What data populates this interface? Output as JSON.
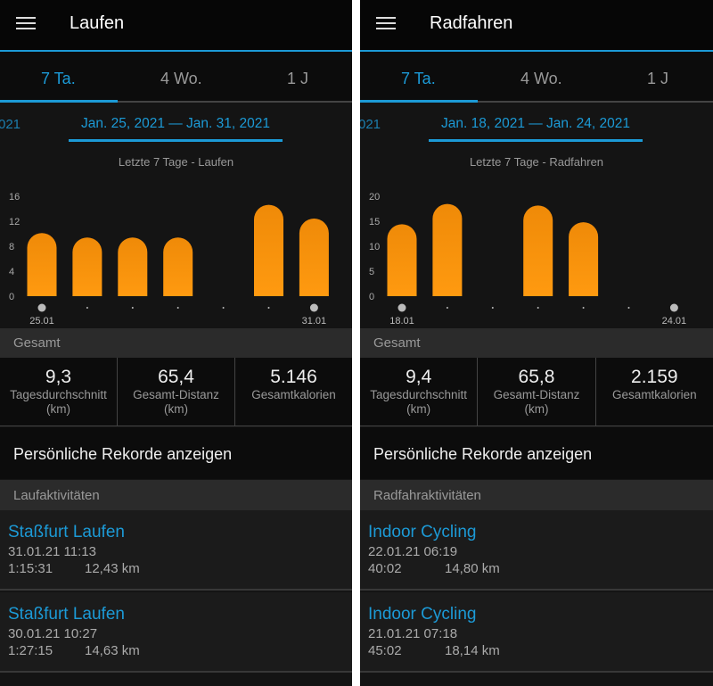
{
  "colors": {
    "accent": "#1c9ad6",
    "bar": "#ff9a10",
    "background": "#141414"
  },
  "panels": [
    {
      "header": {
        "menu_icon": "hamburger-menu-icon",
        "title": "Laufen"
      },
      "tabs": [
        "7 Ta.",
        "4 Wo.",
        "1 J"
      ],
      "active_tab": "7 Ta.",
      "prev_range_fragment": "021",
      "date_range": "Jan. 25, 2021 — Jan. 31, 2021",
      "chart_data": {
        "type": "bar",
        "title": "Letzte 7 Tage - Laufen",
        "ylim": [
          0,
          16
        ],
        "yticks": [
          0,
          4,
          8,
          12,
          16
        ],
        "categories": [
          "25.01",
          "26.01",
          "27.01",
          "28.01",
          "29.01",
          "30.01",
          "31.01"
        ],
        "tick_labels": [
          "25.01",
          "",
          "",
          "",
          "",
          "",
          "31.01"
        ],
        "values": [
          10.1,
          9.4,
          9.4,
          9.4,
          0,
          14.63,
          12.43
        ]
      },
      "summary": {
        "label": "Gesamt",
        "stats": [
          {
            "value": "9,3",
            "label": "Tagesdurchschnitt",
            "unit": "(km)"
          },
          {
            "value": "65,4",
            "label": "Gesamt-Distanz",
            "unit": "(km)"
          },
          {
            "value": "5.146",
            "label": "Gesamtkalorien",
            "unit": ""
          }
        ]
      },
      "records_label": "Persönliche Rekorde anzeigen",
      "activities_label": "Laufaktivitäten",
      "activities": [
        {
          "name": "Staßfurt Laufen",
          "date": "31.01.21 11:13",
          "duration": "1:15:31",
          "distance": "12,43 km"
        },
        {
          "name": "Staßfurt Laufen",
          "date": "30.01.21 10:27",
          "duration": "1:27:15",
          "distance": "14,63 km"
        }
      ]
    },
    {
      "header": {
        "menu_icon": "hamburger-menu-icon",
        "title": "Radfahren"
      },
      "tabs": [
        "7 Ta.",
        "4 Wo.",
        "1 J"
      ],
      "active_tab": "7 Ta.",
      "prev_range_fragment": "021",
      "date_range": "Jan. 18, 2021 — Jan. 24, 2021",
      "chart_data": {
        "type": "bar",
        "title": "Letzte 7 Tage - Radfahren",
        "ylim": [
          0,
          20
        ],
        "yticks": [
          0,
          5,
          10,
          15,
          20
        ],
        "categories": [
          "18.01",
          "19.01",
          "20.01",
          "21.01",
          "22.01",
          "23.01",
          "24.01"
        ],
        "tick_labels": [
          "18.01",
          "",
          "",
          "",
          "",
          "",
          "24.01"
        ],
        "values": [
          14.4,
          18.46,
          0,
          18.14,
          14.8,
          0,
          0
        ]
      },
      "summary": {
        "label": "Gesamt",
        "stats": [
          {
            "value": "9,4",
            "label": "Tagesdurchschnitt",
            "unit": "(km)"
          },
          {
            "value": "65,8",
            "label": "Gesamt-Distanz",
            "unit": "(km)"
          },
          {
            "value": "2.159",
            "label": "Gesamtkalorien",
            "unit": ""
          }
        ]
      },
      "records_label": "Persönliche Rekorde anzeigen",
      "activities_label": "Radfahraktivitäten",
      "activities": [
        {
          "name": "Indoor Cycling",
          "date": "22.01.21 06:19",
          "duration": "40:02",
          "distance": "14,80 km"
        },
        {
          "name": "Indoor Cycling",
          "date": "21.01.21 07:18",
          "duration": "45:02",
          "distance": "18,14 km"
        }
      ]
    }
  ]
}
